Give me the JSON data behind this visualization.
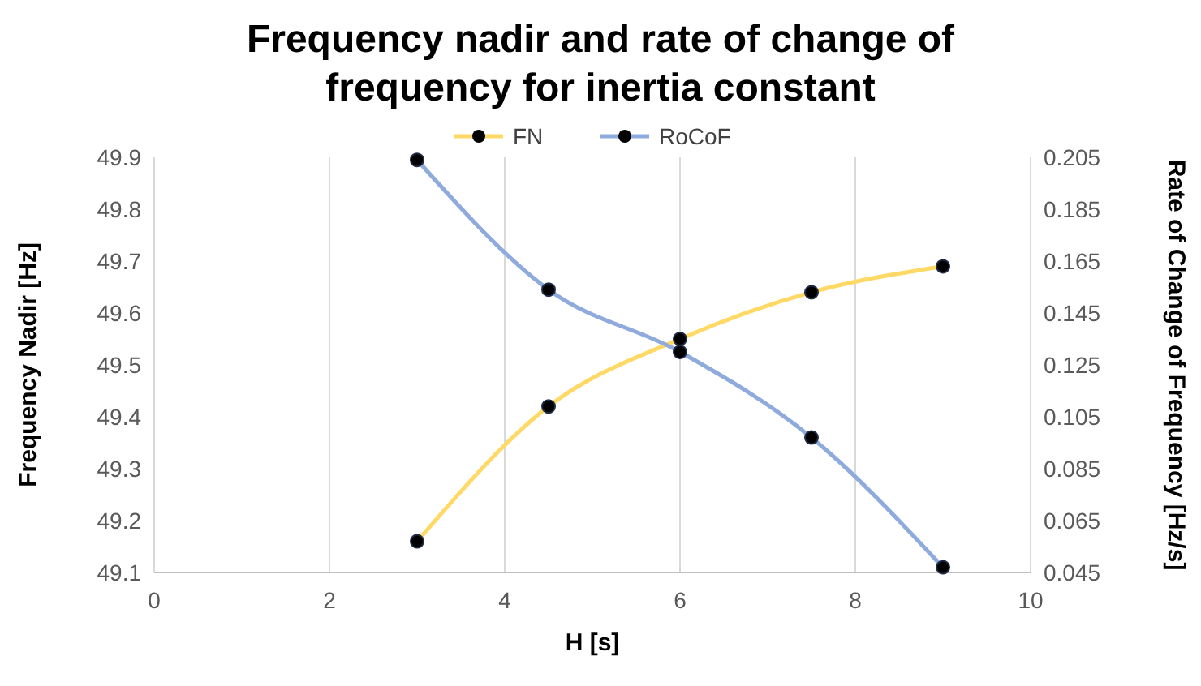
{
  "chart_data": {
    "type": "line",
    "title": "Frequency nadir and rate of change of frequency for inertia constant",
    "xlabel": "H [s]",
    "ylabel": "Frequency  Nadir [Hz]",
    "y2label": "Rate of Change of Frequency [Hz/s]",
    "x": [
      3,
      4.5,
      6,
      7.5,
      9
    ],
    "series": [
      {
        "name": "FN",
        "color": "#ffd966",
        "values": [
          49.16,
          49.42,
          49.55,
          49.64,
          49.69
        ]
      },
      {
        "name": "RoCoF",
        "color": "#8faadc",
        "axis": "y2",
        "values": [
          0.204,
          0.154,
          0.13,
          0.097,
          0.047
        ]
      }
    ],
    "xlim": [
      0,
      10
    ],
    "xticks": [
      0,
      2,
      4,
      6,
      8,
      10
    ],
    "ylim": [
      49.1,
      49.9
    ],
    "yticks": [
      49.1,
      49.2,
      49.3,
      49.4,
      49.5,
      49.6,
      49.7,
      49.8,
      49.9
    ],
    "y2lim": [
      0.045,
      0.205
    ],
    "y2ticks": [
      0.045,
      0.065,
      0.085,
      0.105,
      0.125,
      0.145,
      0.165,
      0.185,
      0.205
    ],
    "grid": "x",
    "legend": "top",
    "marker": "circle",
    "line_style": "solid"
  }
}
